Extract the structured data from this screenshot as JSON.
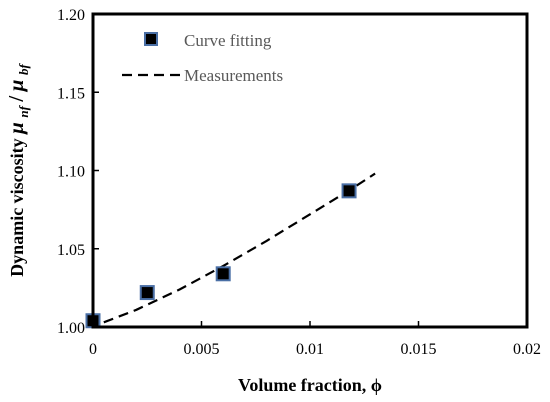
{
  "chart_data": {
    "type": "scatter",
    "xlabel": "Volume fraction, ϕ",
    "ylabel": {
      "prefix": "Dynamic viscosity ",
      "num": "μ",
      "num_sub": "nf",
      "slash": "/",
      "den": "μ",
      "den_sub": "bf"
    },
    "xlim": [
      0,
      0.02
    ],
    "ylim": [
      1.0,
      1.2
    ],
    "x_ticks": [
      0,
      0.005,
      0.01,
      0.015,
      0.02
    ],
    "x_tick_labels": [
      "0",
      "0.005",
      "0.01",
      "0.015",
      "0.02"
    ],
    "y_ticks": [
      1.0,
      1.05,
      1.1,
      1.15,
      1.2
    ],
    "y_tick_labels": [
      "1.00",
      "1.05",
      "1.10",
      "1.15",
      "1.20"
    ],
    "grid": false,
    "legend": "top-left",
    "series": [
      {
        "name": "Curve fitting",
        "mode": "markers",
        "marker": "square",
        "color": "#000000",
        "edge_color": "#4a6fa5",
        "points": [
          {
            "x": 0.0,
            "y": 1.004
          },
          {
            "x": 0.0025,
            "y": 1.022
          },
          {
            "x": 0.006,
            "y": 1.034
          },
          {
            "x": 0.0118,
            "y": 1.087
          }
        ]
      },
      {
        "name": "Measurements",
        "mode": "line",
        "dash": "dashed",
        "color": "#000000",
        "points": [
          {
            "x": 0.0005,
            "y": 1.003
          },
          {
            "x": 0.002,
            "y": 1.011
          },
          {
            "x": 0.004,
            "y": 1.024
          },
          {
            "x": 0.006,
            "y": 1.039
          },
          {
            "x": 0.008,
            "y": 1.055
          },
          {
            "x": 0.01,
            "y": 1.072
          },
          {
            "x": 0.012,
            "y": 1.089
          },
          {
            "x": 0.013,
            "y": 1.098
          }
        ]
      }
    ]
  }
}
